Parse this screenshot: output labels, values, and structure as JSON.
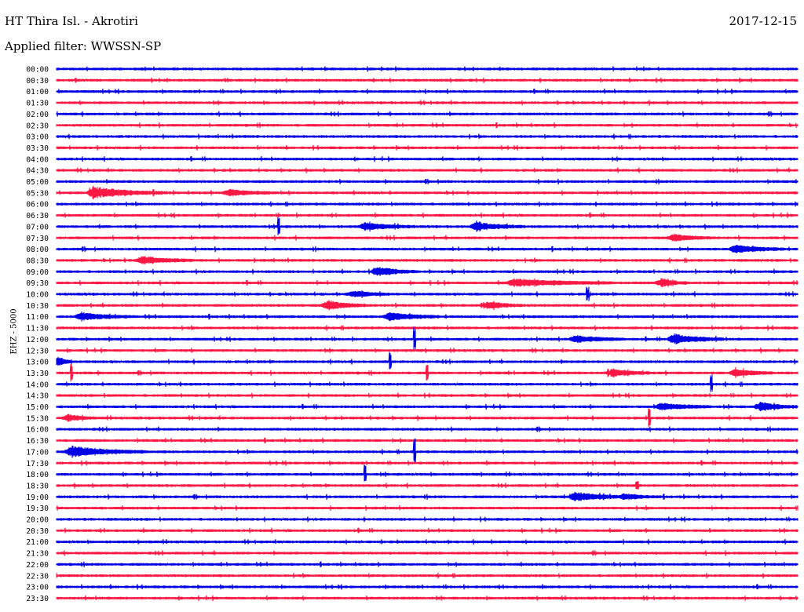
{
  "header": {
    "station": "HT Thira Isl. - Akrotiri",
    "date": "2017-12-15",
    "filter": "Applied filter: WWSSN-SP",
    "channel_label": "EHZ - 5000"
  },
  "colors": {
    "trace_a": "#0000e6",
    "trace_b": "#ff1744"
  },
  "chart_data": {
    "type": "line",
    "title": "HT Thira Isl. - Akrotiri",
    "ylabel": "EHZ - 5000",
    "row_labels": [
      "00:00",
      "00:30",
      "01:00",
      "01:30",
      "02:00",
      "02:30",
      "03:00",
      "03:30",
      "04:00",
      "04:30",
      "05:00",
      "05:30",
      "06:00",
      "06:30",
      "07:00",
      "07:30",
      "08:00",
      "08:30",
      "09:00",
      "09:30",
      "10:00",
      "10:30",
      "11:00",
      "11:30",
      "12:00",
      "12:30",
      "13:00",
      "13:30",
      "14:00",
      "14:30",
      "15:00",
      "15:30",
      "16:00",
      "16:30",
      "17:00",
      "17:30",
      "18:00",
      "18:30",
      "19:00",
      "19:30",
      "20:00",
      "20:30",
      "21:00",
      "21:30",
      "22:00",
      "22:30",
      "23:00",
      "23:30"
    ],
    "series_colors": [
      "blue",
      "red"
    ],
    "row_minutes": 30,
    "events": [
      {
        "row": "05:30",
        "minute": 1.5,
        "amp": 0.7,
        "dur": 3
      },
      {
        "row": "05:30",
        "minute": 7,
        "amp": 0.4,
        "dur": 2
      },
      {
        "row": "07:00",
        "minute": 9,
        "amp": 1.2,
        "dur": 0.1
      },
      {
        "row": "07:00",
        "minute": 12.5,
        "amp": 0.45,
        "dur": 2
      },
      {
        "row": "07:00",
        "minute": 17,
        "amp": 0.5,
        "dur": 2
      },
      {
        "row": "07:30",
        "minute": 25,
        "amp": 0.45,
        "dur": 1.5
      },
      {
        "row": "08:00",
        "minute": 27.5,
        "amp": 0.5,
        "dur": 2
      },
      {
        "row": "08:30",
        "minute": 3.5,
        "amp": 0.5,
        "dur": 2
      },
      {
        "row": "09:00",
        "minute": 13,
        "amp": 0.6,
        "dur": 1.5
      },
      {
        "row": "09:30",
        "minute": 18.5,
        "amp": 0.5,
        "dur": 4
      },
      {
        "row": "09:30",
        "minute": 24.5,
        "amp": 0.55,
        "dur": 1
      },
      {
        "row": "10:00",
        "minute": 12,
        "amp": 0.4,
        "dur": 1.5
      },
      {
        "row": "10:00",
        "minute": 21.5,
        "amp": 0.6,
        "dur": 0.1
      },
      {
        "row": "10:30",
        "minute": 11,
        "amp": 0.6,
        "dur": 1.5
      },
      {
        "row": "10:30",
        "minute": 17.5,
        "amp": 0.45,
        "dur": 1.5
      },
      {
        "row": "11:00",
        "minute": 1,
        "amp": 0.5,
        "dur": 2
      },
      {
        "row": "11:00",
        "minute": 13.5,
        "amp": 0.5,
        "dur": 2
      },
      {
        "row": "12:00",
        "minute": 14.5,
        "amp": 1.1,
        "dur": 0.1
      },
      {
        "row": "12:00",
        "minute": 21,
        "amp": 0.45,
        "dur": 2
      },
      {
        "row": "12:00",
        "minute": 25,
        "amp": 0.65,
        "dur": 2
      },
      {
        "row": "13:00",
        "minute": 0.1,
        "amp": 0.6,
        "dur": 0.5
      },
      {
        "row": "13:00",
        "minute": 13.5,
        "amp": 0.8,
        "dur": 0.1
      },
      {
        "row": "13:30",
        "minute": 0.6,
        "amp": 1.0,
        "dur": 0.1
      },
      {
        "row": "13:30",
        "minute": 15,
        "amp": 0.8,
        "dur": 0.1
      },
      {
        "row": "13:30",
        "minute": 22.5,
        "amp": 0.5,
        "dur": 1.5
      },
      {
        "row": "13:30",
        "minute": 27.5,
        "amp": 0.5,
        "dur": 1.5
      },
      {
        "row": "14:00",
        "minute": 26.5,
        "amp": 0.9,
        "dur": 0.1
      },
      {
        "row": "15:00",
        "minute": 24.5,
        "amp": 0.45,
        "dur": 2
      },
      {
        "row": "15:00",
        "minute": 28.5,
        "amp": 0.55,
        "dur": 1.5
      },
      {
        "row": "15:30",
        "minute": 0.5,
        "amp": 0.4,
        "dur": 1
      },
      {
        "row": "15:30",
        "minute": 24,
        "amp": 1.0,
        "dur": 0.1
      },
      {
        "row": "17:00",
        "minute": 0.6,
        "amp": 0.7,
        "dur": 3
      },
      {
        "row": "17:00",
        "minute": 14.5,
        "amp": 1.2,
        "dur": 0.1
      },
      {
        "row": "18:00",
        "minute": 12.5,
        "amp": 0.8,
        "dur": 0.1
      },
      {
        "row": "18:30",
        "minute": 23.5,
        "amp": 0.5,
        "dur": 0.1
      },
      {
        "row": "19:00",
        "minute": 21,
        "amp": 0.6,
        "dur": 2
      },
      {
        "row": "19:00",
        "minute": 23,
        "amp": 0.35,
        "dur": 1.5
      }
    ]
  }
}
